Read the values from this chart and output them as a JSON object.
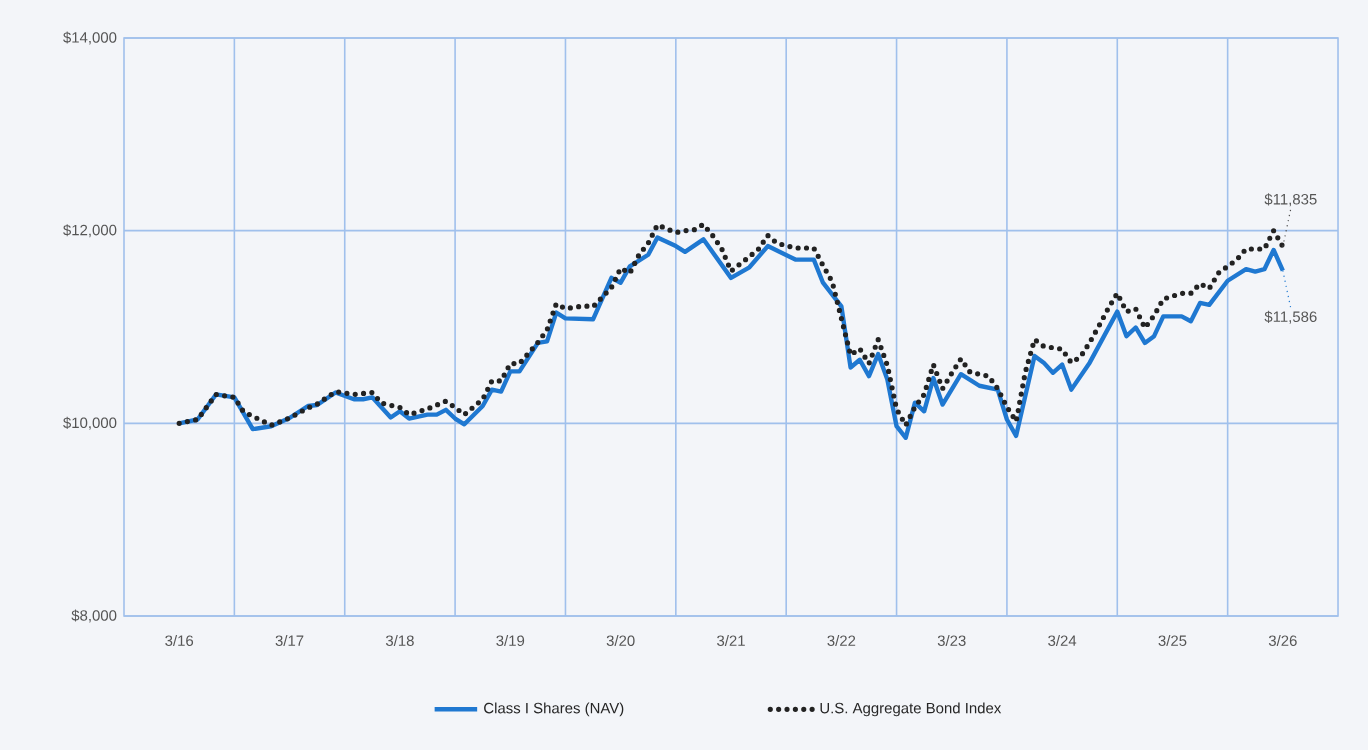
{
  "chart_data": {
    "type": "line",
    "x": [
      "2016-03",
      "2016-05",
      "2016-07",
      "2016-09",
      "2016-11",
      "2017-01",
      "2017-03",
      "2017-05",
      "2017-06",
      "2017-08",
      "2017-10",
      "2017-11",
      "2017-12",
      "2018-02",
      "2018-03",
      "2018-04",
      "2018-06",
      "2018-07",
      "2018-08",
      "2018-09",
      "2018-10",
      "2018-12",
      "2019-01",
      "2019-02",
      "2019-03",
      "2019-04",
      "2019-06",
      "2019-07",
      "2019-08",
      "2019-09",
      "2019-12",
      "2020-02",
      "2020-03",
      "2020-04",
      "2020-06",
      "2020-07",
      "2020-09",
      "2020-10",
      "2020-12",
      "2021-03",
      "2021-05",
      "2021-07",
      "2021-10",
      "2021-12",
      "2022-01",
      "2022-03",
      "2022-04",
      "2022-05",
      "2022-06",
      "2022-07",
      "2022-08",
      "2022-09",
      "2022-10",
      "2022-11",
      "2022-12",
      "2023-01",
      "2023-02",
      "2023-04",
      "2023-06",
      "2023-08",
      "2023-09",
      "2023-10",
      "2023-12",
      "2024-01",
      "2024-02",
      "2024-03",
      "2024-04",
      "2024-06",
      "2024-09",
      "2024-10",
      "2024-11",
      "2024-12",
      "2025-01",
      "2025-02",
      "2025-04",
      "2025-05",
      "2025-06",
      "2025-07",
      "2025-09",
      "2025-11",
      "2025-12",
      "2026-01",
      "2026-02",
      "2026-03"
    ],
    "series": [
      {
        "name": "Class I Shares (NAV)",
        "color": "#1f78d1",
        "line_style": "solid",
        "values": [
          10000,
          10040,
          10300,
          10270,
          9940,
          9970,
          10055,
          10180,
          10190,
          10320,
          10250,
          10250,
          10270,
          10060,
          10125,
          10050,
          10090,
          10090,
          10140,
          10050,
          9990,
          10180,
          10350,
          10330,
          10540,
          10540,
          10835,
          10850,
          11150,
          11090,
          11080,
          11510,
          11460,
          11630,
          11750,
          11930,
          11840,
          11780,
          11910,
          11510,
          11620,
          11840,
          11700,
          11700,
          11460,
          11215,
          10580,
          10660,
          10490,
          10720,
          10455,
          9970,
          9850,
          10215,
          10125,
          10470,
          10195,
          10510,
          10390,
          10350,
          10040,
          9870,
          10700,
          10630,
          10525,
          10610,
          10350,
          10630,
          11160,
          10905,
          10995,
          10835,
          10905,
          11110,
          11110,
          11060,
          11250,
          11230,
          11480,
          11600,
          11575,
          11600,
          11800,
          11586
        ]
      },
      {
        "name": "U.S. Aggregate Bond Index",
        "color": "#222222",
        "line_style": "dotted",
        "x": [
          "2016-03",
          "2016-05",
          "2016-07",
          "2016-09",
          "2016-10",
          "2017-01",
          "2017-03",
          "2017-05",
          "2017-06",
          "2017-08",
          "2017-10",
          "2017-12",
          "2018-01",
          "2018-03",
          "2018-04",
          "2018-06",
          "2018-08",
          "2018-09",
          "2018-10",
          "2018-12",
          "2019-01",
          "2019-02",
          "2019-03",
          "2019-04",
          "2019-06",
          "2019-07",
          "2019-08",
          "2019-09",
          "2019-11",
          "2019-12",
          "2020-02",
          "2020-03",
          "2020-04",
          "2020-05",
          "2020-06",
          "2020-07",
          "2020-09",
          "2020-10",
          "2020-11",
          "2020-12",
          "2021-01",
          "2021-02",
          "2021-03",
          "2021-05",
          "2021-06",
          "2021-07",
          "2021-08",
          "2021-10",
          "2021-12",
          "2022-01",
          "2022-02",
          "2022-03",
          "2022-04",
          "2022-05",
          "2022-06",
          "2022-07",
          "2022-08",
          "2022-09",
          "2022-10",
          "2022-11",
          "2022-12",
          "2023-01",
          "2023-02",
          "2023-03",
          "2023-04",
          "2023-05",
          "2023-07",
          "2023-08",
          "2023-09",
          "2023-10",
          "2023-11",
          "2023-12",
          "2024-01",
          "2024-03",
          "2024-04",
          "2024-05",
          "2024-06",
          "2024-07",
          "2024-08",
          "2024-09",
          "2024-10",
          "2024-11",
          "2024-12",
          "2025-01",
          "2025-02",
          "2025-04",
          "2025-05",
          "2025-06",
          "2025-07",
          "2025-08",
          "2025-10",
          "2025-11",
          "2026-01",
          "2026-02",
          "2026-03"
        ],
        "values": [
          10000,
          10040,
          10300,
          10270,
          10120,
          9980,
          10055,
          10160,
          10200,
          10330,
          10300,
          10320,
          10210,
          10165,
          10090,
          10150,
          10230,
          10165,
          10090,
          10250,
          10440,
          10440,
          10620,
          10620,
          10840,
          10970,
          11240,
          11190,
          11220,
          11210,
          11410,
          11610,
          11560,
          11750,
          11870,
          12060,
          11980,
          12000,
          12010,
          12065,
          11950,
          11810,
          11580,
          11730,
          11810,
          11950,
          11870,
          11820,
          11820,
          11640,
          11470,
          11090,
          10710,
          10775,
          10620,
          10870,
          10600,
          10150,
          9980,
          10170,
          10300,
          10610,
          10360,
          10520,
          10670,
          10530,
          10490,
          10360,
          10170,
          10020,
          10530,
          10870,
          10800,
          10770,
          10630,
          10690,
          10840,
          11010,
          11190,
          11350,
          11160,
          11190,
          10990,
          11120,
          11290,
          11350,
          11350,
          11450,
          11400,
          11560,
          11700,
          11810,
          11810,
          12000,
          11835
        ]
      }
    ],
    "xlim": [
      "2015-09",
      "2026-09"
    ],
    "xticks": [
      {
        "value": "2016-03",
        "label": "3/16"
      },
      {
        "value": "2017-03",
        "label": "3/17"
      },
      {
        "value": "2018-03",
        "label": "3/18"
      },
      {
        "value": "2019-03",
        "label": "3/19"
      },
      {
        "value": "2020-03",
        "label": "3/20"
      },
      {
        "value": "2021-03",
        "label": "3/21"
      },
      {
        "value": "2022-03",
        "label": "3/22"
      },
      {
        "value": "2023-03",
        "label": "3/23"
      },
      {
        "value": "2024-03",
        "label": "3/24"
      },
      {
        "value": "2025-03",
        "label": "3/25"
      },
      {
        "value": "2026-03",
        "label": "3/26"
      },
      {
        "value": "2016-09",
        "label": null
      },
      {
        "value": "2017-09",
        "label": null
      },
      {
        "value": "2018-09",
        "label": null
      },
      {
        "value": "2019-09",
        "label": null
      },
      {
        "value": "2020-09",
        "label": null
      },
      {
        "value": "2021-09",
        "label": null
      },
      {
        "value": "2022-09",
        "label": null
      },
      {
        "value": "2023-09",
        "label": null
      },
      {
        "value": "2024-09",
        "label": null
      },
      {
        "value": "2025-09",
        "label": null
      }
    ],
    "ylim": [
      8000,
      14000
    ],
    "yticks": [
      {
        "value": 8000,
        "label": "$8,000"
      },
      {
        "value": 10000,
        "label": "$10,000"
      },
      {
        "value": 12000,
        "label": "$12,000"
      },
      {
        "value": 14000,
        "label": "$14,000"
      }
    ],
    "grid": true,
    "legend": "bottom",
    "annotations": [
      {
        "text": "$11,835",
        "x": "2026-03",
        "y": 11835
      },
      {
        "text": "$11,586",
        "x": "2026-03",
        "y": 11586
      }
    ]
  }
}
